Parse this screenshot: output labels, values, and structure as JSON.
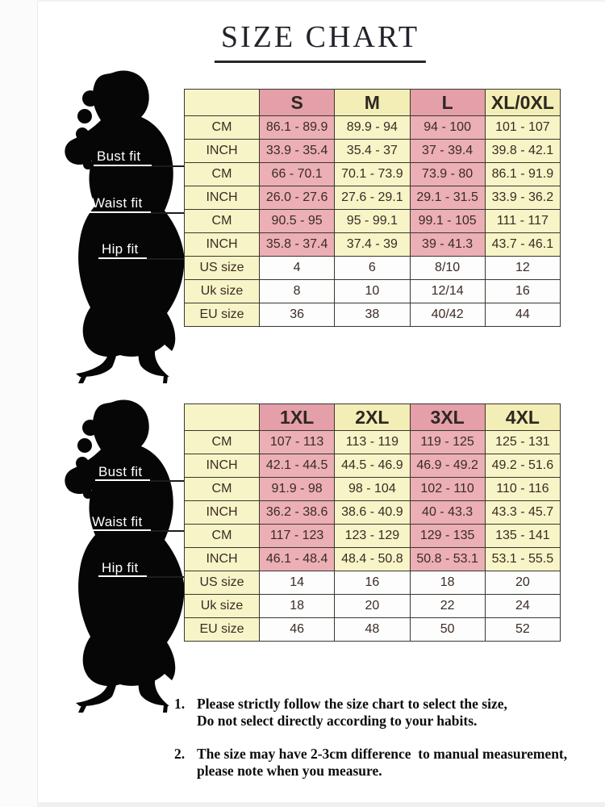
{
  "title": "SIZE CHART",
  "figure": {
    "description": "black silhouette of a woman in a fitted mermaid dress and high heels",
    "labels": [
      "Bust fit",
      "Waist fit",
      "Hip fit"
    ]
  },
  "tables": [
    {
      "name": "size-table-standard",
      "columns": [
        "",
        "S",
        "M",
        "L",
        "XL/0XL"
      ],
      "rows": [
        [
          "CM",
          "86.1 - 89.9",
          "89.9 - 94",
          "94 - 100",
          "101 - 107"
        ],
        [
          "INCH",
          "33.9 - 35.4",
          "35.4 - 37",
          "37 - 39.4",
          "39.8 - 42.1"
        ],
        [
          "CM",
          "66 - 70.1",
          "70.1 - 73.9",
          "73.9 - 80",
          "86.1 - 91.9"
        ],
        [
          "INCH",
          "26.0 - 27.6",
          "27.6 - 29.1",
          "29.1 - 31.5",
          "33.9 - 36.2"
        ],
        [
          "CM",
          "90.5 - 95",
          "95 - 99.1",
          "99.1 - 105",
          "111 - 117"
        ],
        [
          "INCH",
          "35.8 - 37.4",
          "37.4 - 39",
          "39 - 41.3",
          "43.7 - 46.1"
        ],
        [
          "US size",
          "4",
          "6",
          "8/10",
          "12"
        ],
        [
          "Uk size",
          "8",
          "10",
          "12/14",
          "16"
        ],
        [
          "EU size",
          "36",
          "38",
          "40/42",
          "44"
        ]
      ],
      "size_row_start": 6
    },
    {
      "name": "size-table-plus",
      "columns": [
        "",
        "1XL",
        "2XL",
        "3XL",
        "4XL"
      ],
      "rows": [
        [
          "CM",
          "107 - 113",
          "113 - 119",
          "119 - 125",
          "125 - 131"
        ],
        [
          "INCH",
          "42.1 - 44.5",
          "44.5 - 46.9",
          "46.9 - 49.2",
          "49.2 - 51.6"
        ],
        [
          "CM",
          "91.9 - 98",
          "98 - 104",
          "102 - 110",
          "110 - 116"
        ],
        [
          "INCH",
          "36.2 - 38.6",
          "38.6 - 40.9",
          "40 - 43.3",
          "43.3 - 45.7"
        ],
        [
          "CM",
          "117 - 123",
          "123 - 129",
          "129 - 135",
          "135 - 141"
        ],
        [
          "INCH",
          "46.1 - 48.4",
          "48.4 - 50.8",
          "50.8 - 53.1",
          "53.1 - 55.5"
        ],
        [
          "US size",
          "14",
          "16",
          "18",
          "20"
        ],
        [
          "Uk size",
          "18",
          "20",
          "22",
          "24"
        ],
        [
          "EU size",
          "46",
          "48",
          "50",
          "52"
        ]
      ],
      "size_row_start": 6
    }
  ],
  "notes": [
    {
      "num": "1.",
      "text": "Please strictly follow the size chart to select the size,\nDo not select directly according to your habits."
    },
    {
      "num": "2.",
      "text": "The size may have 2-3cm difference  to manual measurement,\nplease note when you measure."
    }
  ],
  "colors": {
    "pink_header": "#e49fa9",
    "pink_cell": "#ebafb5",
    "cream_header": "#f2eeb5",
    "cream_cell": "#f7f4c7",
    "white_cell": "#fdfdfd",
    "border": "#3a362e",
    "silhouette": "#060606",
    "title_text": "#23232b"
  }
}
